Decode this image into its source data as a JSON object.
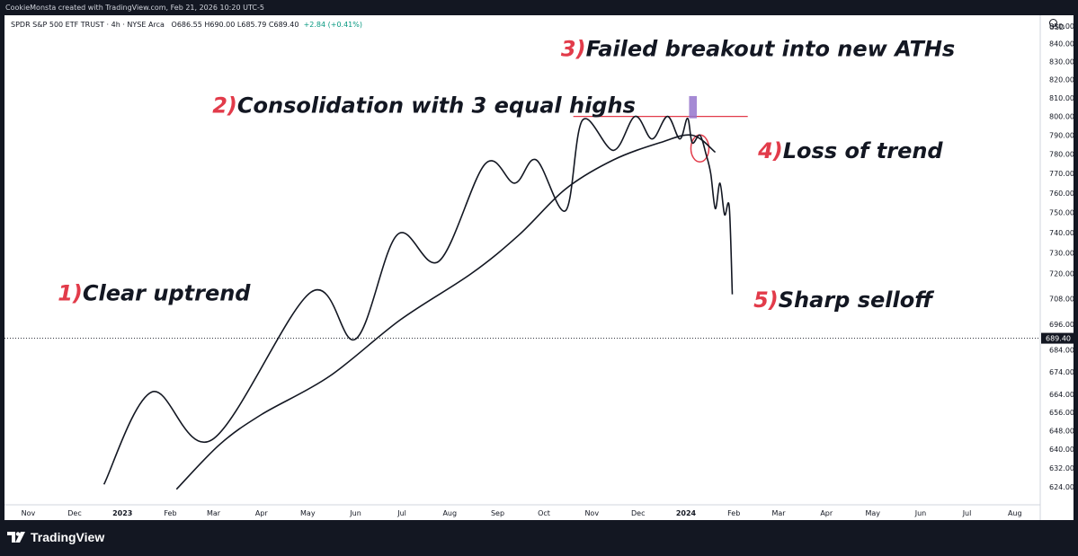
{
  "header": {
    "attribution": "CookieMonsta created with TradingView.com, Feb 21, 2026 10:20 UTC-5",
    "symbol": "SPDR S&P 500 ETF TRUST · 4h · NYSE Arca",
    "ohlc": "O686.55  H690.00  L685.79  C689.40",
    "change": "+2.84 (+0.41%)"
  },
  "footer": {
    "brand": "TradingView"
  },
  "chart_data": {
    "type": "line",
    "ylabel_unit": "USD",
    "ylim": [
      618,
      850
    ],
    "y_scale": "log",
    "y_ticks": [
      850,
      840,
      830,
      820,
      810,
      800,
      790,
      780,
      770,
      760,
      750,
      740,
      730,
      720,
      708,
      696,
      684,
      674,
      664,
      656,
      648,
      640,
      632,
      624
    ],
    "last_price_label": "689.40",
    "x_labels": [
      "Nov",
      "Dec",
      "2023",
      "Feb",
      "Mar",
      "Apr",
      "May",
      "Jun",
      "Jul",
      "Aug",
      "Sep",
      "Oct",
      "Nov",
      "Dec",
      "2024",
      "Feb",
      "Mar",
      "Apr",
      "May",
      "Jun",
      "Jul",
      "Aug"
    ],
    "series": [
      {
        "values": [
          {
            "x": "2022-12-20",
            "y": 625
          },
          {
            "x": "2023-01-20",
            "y": 665
          },
          {
            "x": "2023-02-28",
            "y": 644
          },
          {
            "x": "2023-05-03",
            "y": 711
          },
          {
            "x": "2023-06-01",
            "y": 689
          },
          {
            "x": "2023-06-28",
            "y": 739
          },
          {
            "x": "2023-07-25",
            "y": 726
          },
          {
            "x": "2023-08-24",
            "y": 775
          },
          {
            "x": "2023-09-12",
            "y": 765
          },
          {
            "x": "2023-09-26",
            "y": 777
          },
          {
            "x": "2023-10-15",
            "y": 751
          },
          {
            "x": "2023-10-26",
            "y": 798
          },
          {
            "x": "2023-11-15",
            "y": 782
          },
          {
            "x": "2023-11-29",
            "y": 800
          },
          {
            "x": "2023-12-10",
            "y": 788
          },
          {
            "x": "2023-12-20",
            "y": 800
          },
          {
            "x": "2023-12-28",
            "y": 788
          },
          {
            "x": "2024-01-02",
            "y": 799
          },
          {
            "x": "2024-01-05",
            "y": 786
          },
          {
            "x": "2024-01-10",
            "y": 790
          },
          {
            "x": "2024-01-14",
            "y": 780
          },
          {
            "x": "2024-01-17",
            "y": 770
          },
          {
            "x": "2024-01-20",
            "y": 752
          },
          {
            "x": "2024-01-23",
            "y": 765
          },
          {
            "x": "2024-01-26",
            "y": 749
          },
          {
            "x": "2024-01-29",
            "y": 753
          },
          {
            "x": "2024-01-31",
            "y": 710
          }
        ]
      },
      {
        "values": [
          {
            "x": "2023-02-05",
            "y": 623
          },
          {
            "x": "2023-03-05",
            "y": 642
          },
          {
            "x": "2023-04-01",
            "y": 655
          },
          {
            "x": "2023-05-15",
            "y": 672
          },
          {
            "x": "2023-06-30",
            "y": 698
          },
          {
            "x": "2023-08-15",
            "y": 720
          },
          {
            "x": "2023-09-15",
            "y": 739
          },
          {
            "x": "2023-10-15",
            "y": 762
          },
          {
            "x": "2023-11-15",
            "y": 777
          },
          {
            "x": "2023-12-15",
            "y": 786
          },
          {
            "x": "2024-01-05",
            "y": 790
          },
          {
            "x": "2024-01-20",
            "y": 781
          }
        ]
      }
    ],
    "annotations": [
      {
        "num": "1)",
        "text": "Clear uptrend"
      },
      {
        "num": "2)",
        "text": "Consolidation with 3 equal highs"
      },
      {
        "num": "3)",
        "text": "Failed breakout into new ATHs"
      },
      {
        "num": "4)",
        "text": "Loss of trend"
      },
      {
        "num": "5)",
        "text": "Sharp selloff"
      }
    ],
    "resistance_level": 800,
    "breakout_box": {
      "x_start": "2024-01-03",
      "x_end": "2024-01-08",
      "y_low": 799,
      "y_high": 811
    },
    "colors": {
      "line": "#131722",
      "resistance": "#e23b4a",
      "box_fill": "#9575cd",
      "marker": "#e23b4a",
      "price_line": "#131722"
    }
  }
}
